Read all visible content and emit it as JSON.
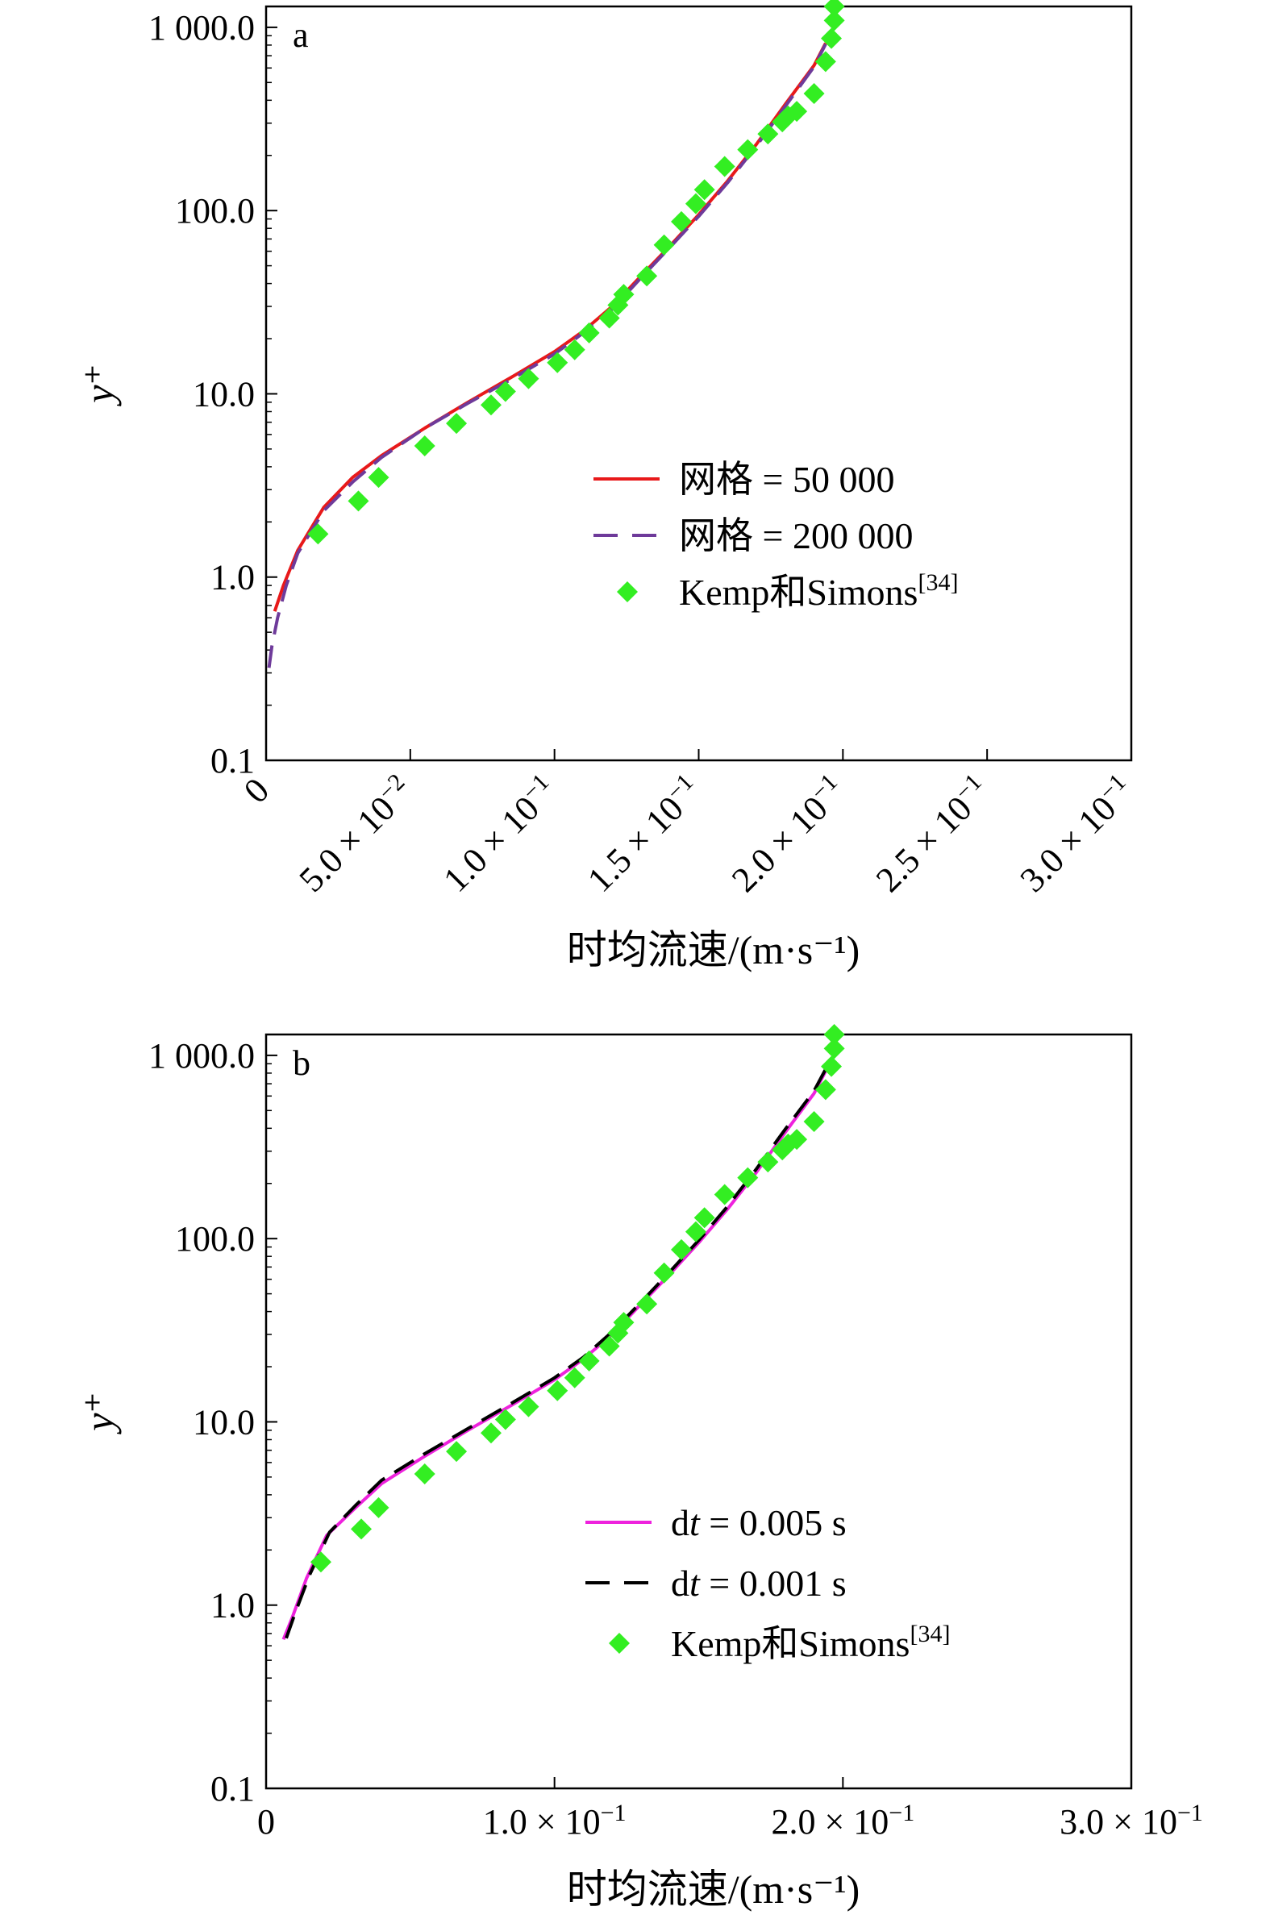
{
  "chart_data": [
    {
      "type": "line",
      "panel_label": "a",
      "xlabel": "时均流速/(m·s⁻¹)",
      "ylabel": "y⁺",
      "xlim": [
        0,
        0.3
      ],
      "ylim": [
        0.1,
        1300
      ],
      "yscale": "log",
      "xticks": [
        {
          "value": 0,
          "label": "0",
          "mant": "0",
          "exp": ""
        },
        {
          "value": 0.05,
          "label": "5.0 × 10⁻²",
          "mant": "5.0 × 10",
          "exp": "−2"
        },
        {
          "value": 0.1,
          "label": "1.0 × 10⁻¹",
          "mant": "1.0 × 10",
          "exp": "−1"
        },
        {
          "value": 0.15,
          "label": "1.5 × 10⁻¹",
          "mant": "1.5 × 10",
          "exp": "−1"
        },
        {
          "value": 0.2,
          "label": "2.0 × 10⁻¹",
          "mant": "2.0 × 10",
          "exp": "−1"
        },
        {
          "value": 0.25,
          "label": "2.5 × 10⁻¹",
          "mant": "2.5 × 10",
          "exp": "−1"
        },
        {
          "value": 0.3,
          "label": "3.0 × 10⁻¹",
          "mant": "3.0 × 10",
          "exp": "−1"
        }
      ],
      "xtick_rotation": -45,
      "yticks": [
        {
          "value": 0.1,
          "label": "0.1"
        },
        {
          "value": 1,
          "label": "1.0"
        },
        {
          "value": 10,
          "label": "10.0"
        },
        {
          "value": 100,
          "label": "100.0"
        },
        {
          "value": 1000,
          "label": "1 000.0"
        }
      ],
      "legend_position": "center-right",
      "series": [
        {
          "name": "网格 = 50 000",
          "style": "solid",
          "color": "#e8191a",
          "x": [
            0.003,
            0.006,
            0.011,
            0.02,
            0.03,
            0.04,
            0.055,
            0.07,
            0.085,
            0.1,
            0.11,
            0.12,
            0.13,
            0.14,
            0.15,
            0.16,
            0.17,
            0.18,
            0.19,
            0.194
          ],
          "y": [
            0.65,
            0.9,
            1.4,
            2.4,
            3.5,
            4.6,
            6.5,
            9.0,
            12.3,
            17,
            22,
            30,
            44,
            64,
            95,
            145,
            230,
            380,
            620,
            820
          ]
        },
        {
          "name": "网格 = 200 000",
          "style": "dashed",
          "color": "#6e3a9a",
          "x": [
            0.001,
            0.002,
            0.004,
            0.007,
            0.011,
            0.02,
            0.03,
            0.04,
            0.055,
            0.07,
            0.085,
            0.1,
            0.11,
            0.12,
            0.13,
            0.14,
            0.15,
            0.16,
            0.17,
            0.18,
            0.19,
            0.194
          ],
          "y": [
            0.32,
            0.42,
            0.6,
            0.9,
            1.35,
            2.3,
            3.3,
            4.5,
            6.5,
            8.9,
            12.0,
            16.5,
            21.5,
            29,
            43,
            63,
            93,
            142,
            225,
            370,
            610,
            810
          ]
        },
        {
          "name": "Kemp和Simons",
          "name_superscript": "[34]",
          "style": "marker",
          "color": "#33ee22",
          "x": [
            0.018,
            0.032,
            0.039,
            0.055,
            0.066,
            0.078,
            0.083,
            0.091,
            0.101,
            0.107,
            0.112,
            0.119,
            0.122,
            0.124,
            0.132,
            0.138,
            0.144,
            0.149,
            0.152,
            0.159,
            0.167,
            0.174,
            0.179,
            0.181,
            0.184,
            0.19,
            0.194,
            0.196,
            0.197,
            0.197
          ],
          "y": [
            1.72,
            2.6,
            3.5,
            5.2,
            6.9,
            8.7,
            10.3,
            12.1,
            14.8,
            17.4,
            21.5,
            25.9,
            30.5,
            34.9,
            44,
            65,
            87,
            109,
            130,
            174,
            215,
            262,
            305,
            328,
            348,
            435,
            650,
            870,
            1090,
            1300
          ]
        }
      ]
    },
    {
      "type": "line",
      "panel_label": "b",
      "xlabel": "时均流速/(m·s⁻¹)",
      "ylabel": "y⁺",
      "xlim": [
        0,
        0.3
      ],
      "ylim": [
        0.1,
        1300
      ],
      "yscale": "log",
      "xticks": [
        {
          "value": 0,
          "label": "0",
          "mant": "0",
          "exp": ""
        },
        {
          "value": 0.1,
          "label": "1.0 × 10⁻¹",
          "mant": "1.0 × 10",
          "exp": "−1"
        },
        {
          "value": 0.2,
          "label": "2.0 × 10⁻¹",
          "mant": "2.0 × 10",
          "exp": "−1"
        },
        {
          "value": 0.3,
          "label": "3.0 × 10⁻¹",
          "mant": "3.0 × 10",
          "exp": "−1"
        }
      ],
      "xtick_rotation": 0,
      "yticks": [
        {
          "value": 0.1,
          "label": "0.1"
        },
        {
          "value": 1,
          "label": "1.0"
        },
        {
          "value": 10,
          "label": "10.0"
        },
        {
          "value": 100,
          "label": "100.0"
        },
        {
          "value": 1000,
          "label": "1 000.0"
        }
      ],
      "legend_position": "center-right",
      "series": [
        {
          "name": "dt = 0.005 s",
          "name_prefix": "d",
          "name_italic": "t",
          "name_suffix": " = 0.005 s",
          "style": "solid",
          "color": "#ee22dd",
          "x": [
            0.006,
            0.009,
            0.014,
            0.021,
            0.031,
            0.04,
            0.055,
            0.07,
            0.085,
            0.1,
            0.11,
            0.12,
            0.13,
            0.14,
            0.15,
            0.16,
            0.17,
            0.18,
            0.19,
            0.194
          ],
          "y": [
            0.65,
            0.85,
            1.4,
            2.4,
            3.4,
            4.6,
            6.5,
            9.0,
            12.3,
            17,
            22,
            30,
            44,
            64,
            95,
            145,
            230,
            380,
            620,
            820
          ]
        },
        {
          "name": "dt = 0.001 s",
          "name_prefix": "d",
          "name_italic": "t",
          "name_suffix": " = 0.001 s",
          "style": "dashed",
          "color": "#000000",
          "x": [
            0.007,
            0.01,
            0.015,
            0.022,
            0.031,
            0.04,
            0.055,
            0.07,
            0.085,
            0.1,
            0.11,
            0.12,
            0.13,
            0.14,
            0.15,
            0.16,
            0.17,
            0.18,
            0.19,
            0.194
          ],
          "y": [
            0.66,
            0.9,
            1.45,
            2.5,
            3.5,
            4.8,
            6.7,
            9.2,
            12.6,
            17.4,
            22.5,
            31,
            45,
            66,
            98,
            150,
            240,
            395,
            640,
            840
          ]
        },
        {
          "name": "Kemp和Simons",
          "name_superscript": "[34]",
          "style": "marker",
          "color": "#33ee22",
          "x": [
            0.019,
            0.033,
            0.039,
            0.055,
            0.066,
            0.078,
            0.083,
            0.091,
            0.101,
            0.107,
            0.112,
            0.119,
            0.122,
            0.124,
            0.132,
            0.138,
            0.144,
            0.149,
            0.152,
            0.159,
            0.167,
            0.174,
            0.179,
            0.181,
            0.184,
            0.19,
            0.194,
            0.196,
            0.197,
            0.197
          ],
          "y": [
            1.72,
            2.6,
            3.4,
            5.2,
            6.9,
            8.7,
            10.3,
            12.1,
            14.8,
            17.4,
            21.5,
            25.9,
            30.5,
            34.9,
            44,
            65,
            87,
            109,
            130,
            174,
            215,
            262,
            305,
            328,
            348,
            435,
            650,
            870,
            1090,
            1300
          ]
        }
      ]
    }
  ]
}
